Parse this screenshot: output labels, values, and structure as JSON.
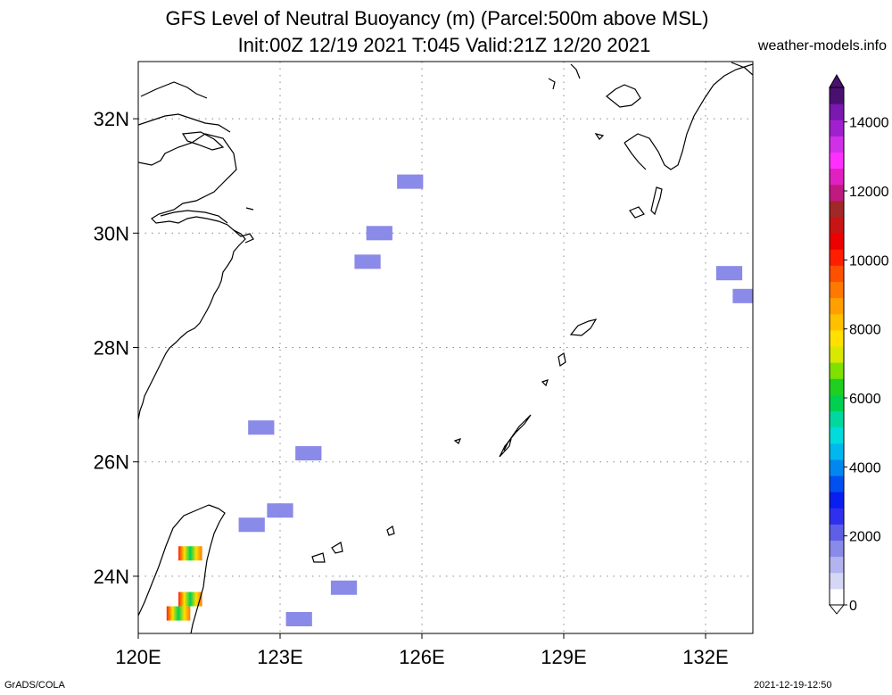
{
  "header": {
    "title_line1": "GFS Level of Neutral Buoyancy (m) (Parcel:500m above MSL)",
    "title_line2": "Init:00Z 12/19 2021 T:045 Valid:21Z 12/20 2021",
    "source": "weather-models.info"
  },
  "footer": {
    "left": "GrADS/COLA",
    "right": "2021-12-19-12:50"
  },
  "map": {
    "lon_range": [
      120,
      133
    ],
    "lat_range": [
      23,
      33
    ],
    "lon_ticks": [
      {
        "value": 120,
        "label": "120E"
      },
      {
        "value": 123,
        "label": "123E"
      },
      {
        "value": 126,
        "label": "126E"
      },
      {
        "value": 129,
        "label": "129E"
      },
      {
        "value": 132,
        "label": "132E"
      }
    ],
    "lat_ticks": [
      {
        "value": 24,
        "label": "24N"
      },
      {
        "value": 26,
        "label": "26N"
      },
      {
        "value": 28,
        "label": "28N"
      },
      {
        "value": 30,
        "label": "30N"
      },
      {
        "value": 32,
        "label": "32N"
      }
    ],
    "grid": "dotted",
    "colorbar": {
      "min": 0,
      "max": 15000,
      "labels": [
        "0",
        "2000",
        "4000",
        "6000",
        "8000",
        "10000",
        "12000",
        "14000"
      ],
      "colors": [
        "#ffffff",
        "#d6d6f5",
        "#b3b3ef",
        "#8a8ae8",
        "#5e5ee6",
        "#2f2fee",
        "#0a1ef0",
        "#0050f0",
        "#0088f0",
        "#00b8f0",
        "#00dcdc",
        "#00d8a0",
        "#00d050",
        "#20d020",
        "#80e000",
        "#d8e800",
        "#ffe000",
        "#ffc000",
        "#ffa000",
        "#ff7800",
        "#ff5000",
        "#ff1e00",
        "#ec0000",
        "#c81414",
        "#a02828",
        "#c01a80",
        "#e020c0",
        "#ff30ff",
        "#d030e8",
        "#a020d0",
        "#7a18b0",
        "#4a1070"
      ]
    },
    "nb_cells": [
      {
        "lon": 125.75,
        "lat": 30.9,
        "level": 1500
      },
      {
        "lon": 125.1,
        "lat": 30.0,
        "level": 1500
      },
      {
        "lon": 124.85,
        "lat": 29.5,
        "level": 1500
      },
      {
        "lon": 132.5,
        "lat": 29.3,
        "level": 1800
      },
      {
        "lon": 132.85,
        "lat": 28.9,
        "level": 1800
      },
      {
        "lon": 122.6,
        "lat": 26.6,
        "level": 1700
      },
      {
        "lon": 123.6,
        "lat": 26.15,
        "level": 1500
      },
      {
        "lon": 123.0,
        "lat": 25.15,
        "level": 1500
      },
      {
        "lon": 122.4,
        "lat": 24.9,
        "level": 1500
      },
      {
        "lon": 124.35,
        "lat": 23.8,
        "level": 1500
      },
      {
        "lon": 123.4,
        "lat": 23.25,
        "level": 1500
      },
      {
        "lon": 121.1,
        "lat": 24.4,
        "level": 7000
      },
      {
        "lon": 121.1,
        "lat": 23.6,
        "level": 6000
      },
      {
        "lon": 120.85,
        "lat": 23.35,
        "level": 8000
      }
    ]
  }
}
